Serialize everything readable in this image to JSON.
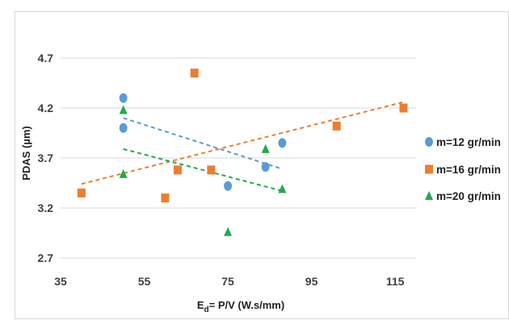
{
  "chart_data": {
    "type": "scatter",
    "title": "",
    "xlabel_main": "E",
    "xlabel_sub": "d",
    "xlabel_rest": "= P/V (W.s/mm)",
    "ylabel": "PDAS (µm)",
    "xlim": [
      35,
      120
    ],
    "ylim": [
      2.7,
      4.7
    ],
    "xticks": [
      35,
      55,
      75,
      95,
      115
    ],
    "yticks": [
      "2.7",
      "3.2",
      "3.7",
      "4.2",
      "4.7"
    ],
    "grid": "horizontal",
    "legend_position": "right",
    "series": [
      {
        "name": "m=12 gr/min",
        "marker": "circle",
        "color": "#5b9bd5",
        "x": [
          50,
          50,
          75,
          84,
          88
        ],
        "y": [
          4.3,
          4.0,
          3.42,
          3.61,
          3.85
        ],
        "trendline": {
          "x": [
            50,
            88
          ],
          "y": [
            4.1,
            3.59
          ]
        }
      },
      {
        "name": "m=16 gr/min",
        "marker": "square",
        "color": "#ed7d31",
        "x": [
          40,
          60,
          63,
          67,
          71,
          101,
          117
        ],
        "y": [
          3.35,
          3.3,
          3.58,
          4.55,
          3.58,
          4.02,
          4.2
        ],
        "trendline": {
          "x": [
            40,
            117
          ],
          "y": [
            3.44,
            4.26
          ]
        }
      },
      {
        "name": "m=20 gr/min",
        "marker": "triangle",
        "color": "#23a84e",
        "x": [
          50,
          50,
          75,
          84,
          88
        ],
        "y": [
          4.18,
          3.54,
          2.96,
          3.79,
          3.39
        ],
        "trendline": {
          "x": [
            50,
            88
          ],
          "y": [
            3.79,
            3.37
          ]
        }
      }
    ]
  }
}
